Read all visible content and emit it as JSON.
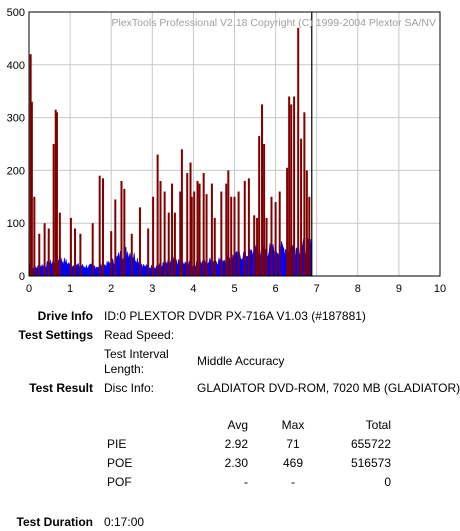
{
  "chart_data": {
    "type": "bar",
    "title": "PlexTools Professional V2.18 Copyright (C) 1999-2004 Plextor SA/NV",
    "xlabel": "",
    "ylabel": "",
    "xlim": [
      0,
      10
    ],
    "ylim": [
      0,
      500
    ],
    "x_ticks": [
      "0",
      "1",
      "2",
      "3",
      "4",
      "5",
      "6",
      "7",
      "8",
      "9",
      "10"
    ],
    "y_ticks": [
      "0",
      "100",
      "200",
      "300",
      "400",
      "500"
    ],
    "grid": true,
    "marker_x": 6.88,
    "series": [
      {
        "color": "#0000ff",
        "profile": [
          [
            0.0,
            22
          ],
          [
            0.05,
            20
          ],
          [
            0.1,
            15
          ],
          [
            0.2,
            17
          ],
          [
            0.3,
            20
          ],
          [
            0.4,
            21
          ],
          [
            0.5,
            23
          ],
          [
            0.6,
            28
          ],
          [
            0.7,
            30
          ],
          [
            0.8,
            30
          ],
          [
            0.9,
            26
          ],
          [
            1.0,
            22
          ],
          [
            1.2,
            19
          ],
          [
            1.4,
            18
          ],
          [
            1.6,
            18
          ],
          [
            1.8,
            20
          ],
          [
            2.0,
            24
          ],
          [
            2.1,
            30
          ],
          [
            2.2,
            38
          ],
          [
            2.3,
            45
          ],
          [
            2.4,
            46
          ],
          [
            2.5,
            42
          ],
          [
            2.6,
            35
          ],
          [
            2.7,
            26
          ],
          [
            2.8,
            18
          ],
          [
            2.9,
            17
          ],
          [
            3.0,
            17
          ],
          [
            3.2,
            20
          ],
          [
            3.4,
            24
          ],
          [
            3.5,
            30
          ],
          [
            3.6,
            26
          ],
          [
            3.8,
            22
          ],
          [
            4.0,
            22
          ],
          [
            4.2,
            25
          ],
          [
            4.4,
            28
          ],
          [
            4.6,
            30
          ],
          [
            4.8,
            33
          ],
          [
            5.0,
            36
          ],
          [
            5.2,
            40
          ],
          [
            5.4,
            43
          ],
          [
            5.6,
            47
          ],
          [
            5.8,
            49
          ],
          [
            6.0,
            50
          ],
          [
            6.2,
            52
          ],
          [
            6.4,
            53
          ],
          [
            6.6,
            55
          ],
          [
            6.8,
            56
          ],
          [
            6.88,
            56
          ]
        ]
      },
      {
        "color": "#800000",
        "spikes": [
          [
            0.04,
            420
          ],
          [
            0.07,
            330
          ],
          [
            0.13,
            150
          ],
          [
            0.25,
            80
          ],
          [
            0.38,
            100
          ],
          [
            0.48,
            90
          ],
          [
            0.6,
            250
          ],
          [
            0.65,
            315
          ],
          [
            0.68,
            310
          ],
          [
            0.75,
            120
          ],
          [
            1.02,
            110
          ],
          [
            1.12,
            90
          ],
          [
            1.25,
            80
          ],
          [
            1.55,
            100
          ],
          [
            1.72,
            190
          ],
          [
            1.8,
            185
          ],
          [
            2.0,
            85
          ],
          [
            2.1,
            145
          ],
          [
            2.25,
            180
          ],
          [
            2.32,
            165
          ],
          [
            2.5,
            80
          ],
          [
            2.7,
            130
          ],
          [
            2.9,
            90
          ],
          [
            3.02,
            150
          ],
          [
            3.13,
            230
          ],
          [
            3.2,
            180
          ],
          [
            3.3,
            160
          ],
          [
            3.4,
            120
          ],
          [
            3.48,
            175
          ],
          [
            3.55,
            120
          ],
          [
            3.68,
            160
          ],
          [
            3.72,
            240
          ],
          [
            3.85,
            195
          ],
          [
            3.93,
            215
          ],
          [
            3.96,
            150
          ],
          [
            4.02,
            160
          ],
          [
            4.1,
            180
          ],
          [
            4.15,
            175
          ],
          [
            4.25,
            195
          ],
          [
            4.32,
            155
          ],
          [
            4.45,
            175
          ],
          [
            4.52,
            110
          ],
          [
            4.68,
            160
          ],
          [
            4.8,
            175
          ],
          [
            4.85,
            200
          ],
          [
            4.92,
            150
          ],
          [
            5.0,
            150
          ],
          [
            5.1,
            160
          ],
          [
            5.25,
            180
          ],
          [
            5.35,
            185
          ],
          [
            5.48,
            115
          ],
          [
            5.55,
            110
          ],
          [
            5.6,
            265
          ],
          [
            5.67,
            325
          ],
          [
            5.72,
            250
          ],
          [
            5.78,
            110
          ],
          [
            5.9,
            150
          ],
          [
            6.0,
            140
          ],
          [
            6.1,
            160
          ],
          [
            6.28,
            205
          ],
          [
            6.33,
            340
          ],
          [
            6.38,
            325
          ],
          [
            6.45,
            340
          ],
          [
            6.55,
            470
          ],
          [
            6.62,
            260
          ],
          [
            6.7,
            310
          ],
          [
            6.76,
            200
          ],
          [
            6.82,
            150
          ]
        ]
      }
    ]
  },
  "info": {
    "drive_label": "Drive Info",
    "drive_value": "ID:0 PLEXTOR DVDR PX-716A V1.03 (#187881)",
    "settings_label": "Test Settings",
    "read_speed_label": "Read Speed:",
    "interval_label_1": "Test Interval",
    "interval_label_2": "Length:",
    "interval_value": "Middle Accuracy",
    "result_label": "Test Result",
    "disc_info_label": "Disc Info:",
    "disc_info_value": "GLADIATOR DVD-ROM, 7020 MB (GLADIATOR)",
    "duration_label": "Test Duration",
    "duration_value": "0:17:00"
  },
  "results": {
    "headers": {
      "avg": "Avg",
      "max": "Max",
      "total": "Total"
    },
    "rows": [
      {
        "name": "PIE",
        "avg": "2.92",
        "max": "71",
        "total": "655722"
      },
      {
        "name": "POE",
        "avg": "2.30",
        "max": "469",
        "total": "516573"
      },
      {
        "name": "POF",
        "avg": "-",
        "max": "-",
        "total": "0"
      }
    ]
  }
}
